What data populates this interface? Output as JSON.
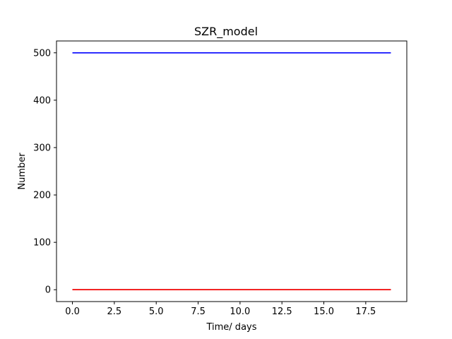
{
  "chart_data": {
    "type": "line",
    "title": "SZR_model",
    "xlabel": "Time/ days",
    "ylabel": "Number",
    "xlim": [
      -0.95,
      19.95
    ],
    "ylim": [
      -25,
      525
    ],
    "xticks": [
      0.0,
      2.5,
      5.0,
      7.5,
      10.0,
      12.5,
      15.0,
      17.5
    ],
    "xtick_labels": [
      "0.0",
      "2.5",
      "5.0",
      "7.5",
      "10.0",
      "12.5",
      "15.0",
      "17.5"
    ],
    "yticks": [
      0,
      100,
      200,
      300,
      400,
      500
    ],
    "ytick_labels": [
      "0",
      "100",
      "200",
      "300",
      "400",
      "500"
    ],
    "grid": false,
    "legend": false,
    "series": [
      {
        "color": "#0000ff",
        "x": [
          0,
          19
        ],
        "y": [
          500,
          500
        ]
      },
      {
        "color": "#000000",
        "x": [
          0,
          19
        ],
        "y": [
          0,
          0
        ]
      },
      {
        "color": "#ff0000",
        "x": [
          0,
          19
        ],
        "y": [
          0,
          0
        ]
      }
    ]
  }
}
